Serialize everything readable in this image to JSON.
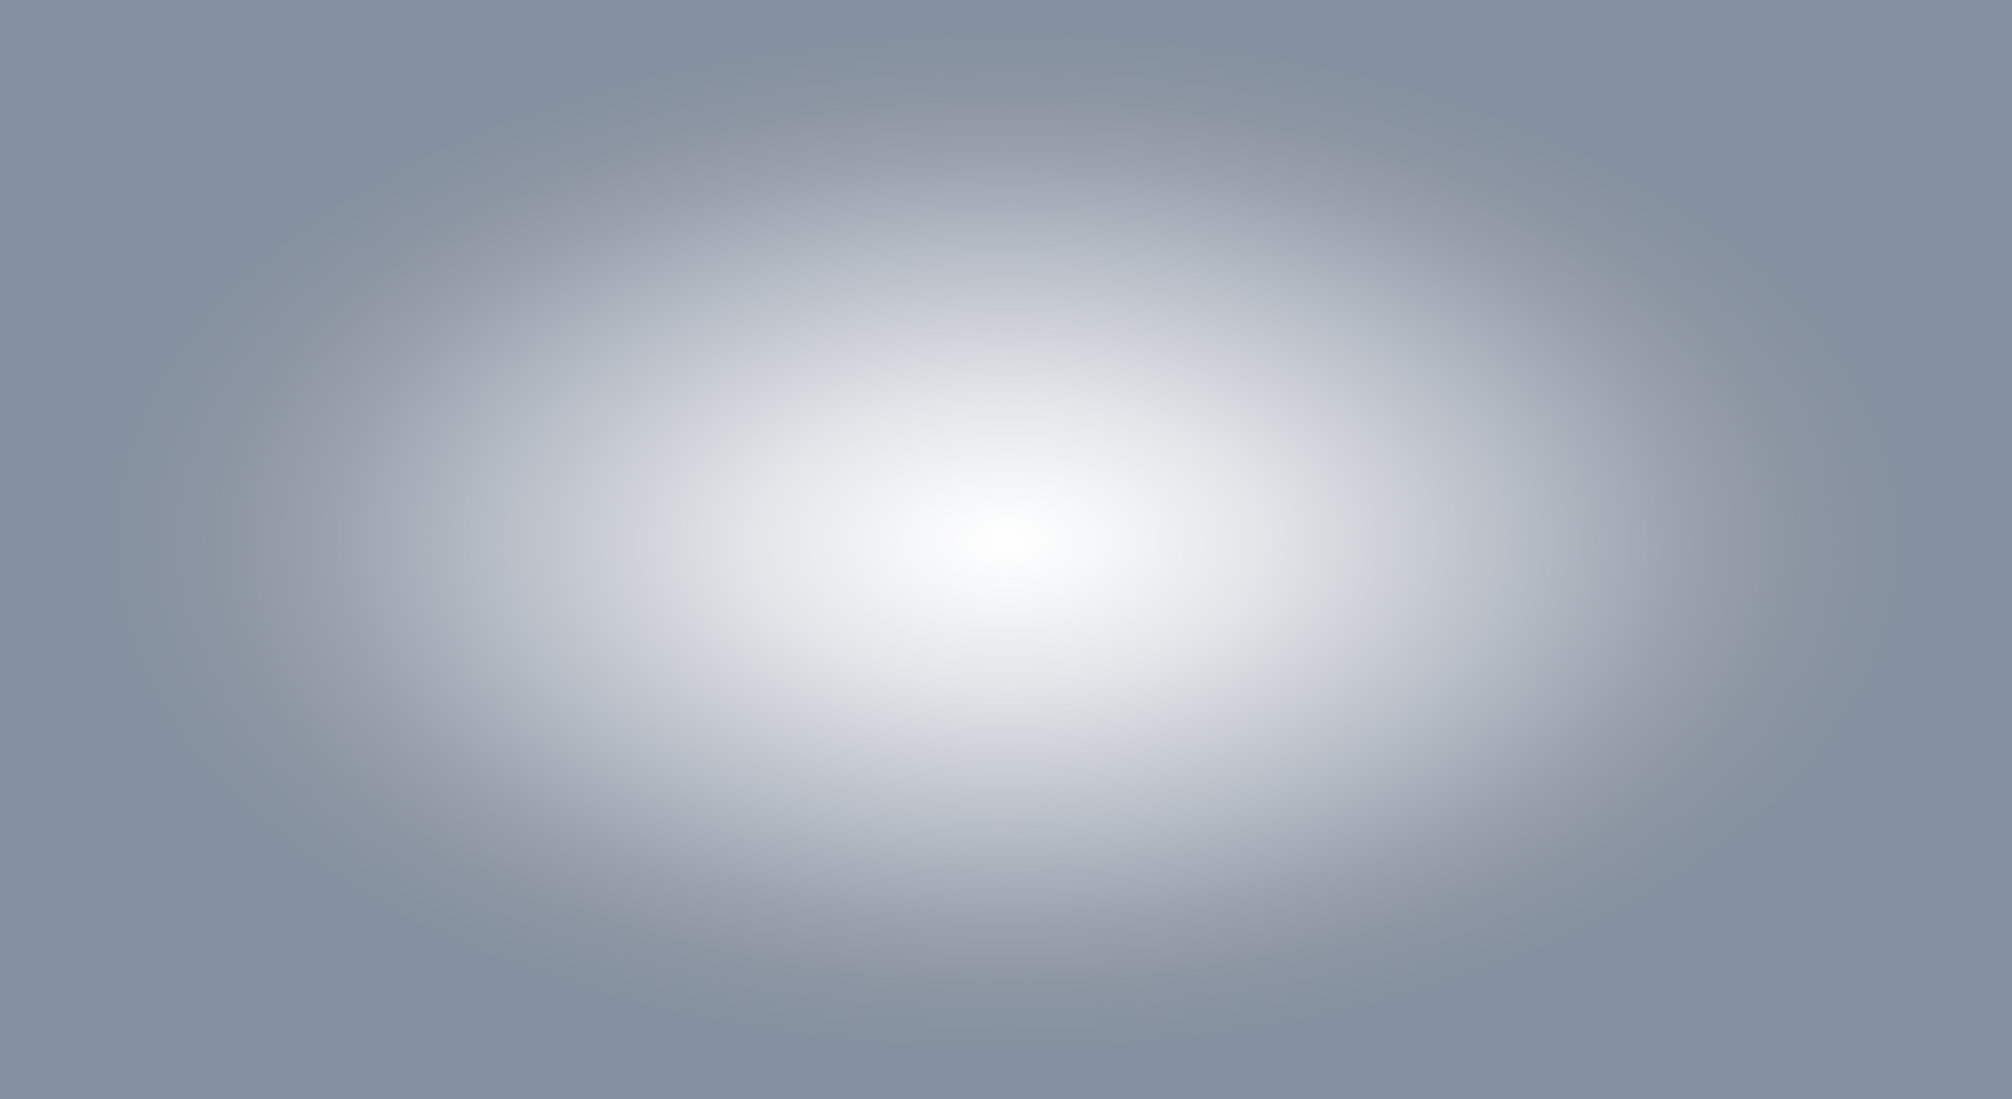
{
  "screen": {
    "description_visible_text": "",
    "background": {
      "edge_color": "#8591a0",
      "center_color": "#ffffff",
      "style": "radial-gradient-vignette"
    }
  }
}
